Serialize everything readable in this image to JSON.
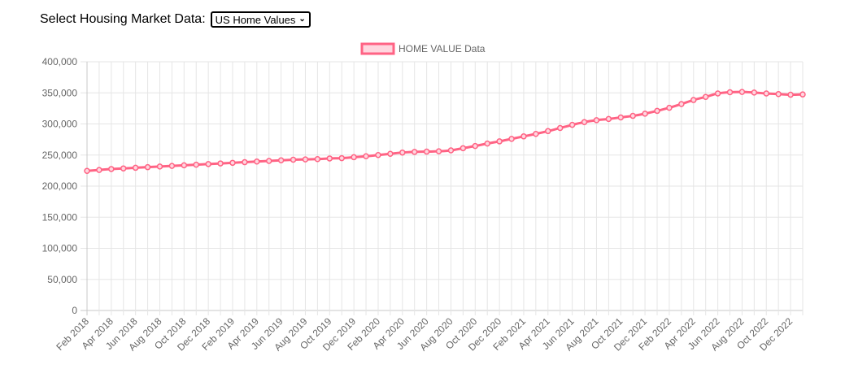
{
  "controls": {
    "label": "Select Housing Market Data:",
    "selected": "US Home Values"
  },
  "colors": {
    "line": "#ff6384",
    "fill": "#ffd6df",
    "grid": "#e5e5e5",
    "tick": "#666666"
  },
  "chart_data": {
    "type": "line",
    "legend": "HOME VALUE Data",
    "legend_position": "top",
    "grid": true,
    "ylim": [
      0,
      400000
    ],
    "yticks": [
      0,
      50000,
      100000,
      150000,
      200000,
      250000,
      300000,
      350000,
      400000
    ],
    "ytick_labels": [
      "0",
      "50,000",
      "100,000",
      "150,000",
      "200,000",
      "250,000",
      "300,000",
      "350,000",
      "400,000"
    ],
    "categories": [
      "Feb 2018",
      "Mar 2018",
      "Apr 2018",
      "May 2018",
      "Jun 2018",
      "Jul 2018",
      "Aug 2018",
      "Sep 2018",
      "Oct 2018",
      "Nov 2018",
      "Dec 2018",
      "Jan 2019",
      "Feb 2019",
      "Mar 2019",
      "Apr 2019",
      "May 2019",
      "Jun 2019",
      "Jul 2019",
      "Aug 2019",
      "Sep 2019",
      "Oct 2019",
      "Nov 2019",
      "Dec 2019",
      "Jan 2020",
      "Feb 2020",
      "Mar 2020",
      "Apr 2020",
      "May 2020",
      "Jun 2020",
      "Jul 2020",
      "Aug 2020",
      "Sep 2020",
      "Oct 2020",
      "Nov 2020",
      "Dec 2020",
      "Jan 2021",
      "Feb 2021",
      "Mar 2021",
      "Apr 2021",
      "May 2021",
      "Jun 2021",
      "Jul 2021",
      "Aug 2021",
      "Sep 2021",
      "Oct 2021",
      "Nov 2021",
      "Dec 2021",
      "Jan 2022",
      "Feb 2022",
      "Mar 2022",
      "Apr 2022",
      "May 2022",
      "Jun 2022",
      "Jul 2022",
      "Aug 2022",
      "Sep 2022",
      "Oct 2022",
      "Nov 2022",
      "Dec 2022",
      "Jan 2023"
    ],
    "tick_labels": [
      "Feb 2018",
      "Apr 2018",
      "Jun 2018",
      "Aug 2018",
      "Oct 2018",
      "Dec 2018",
      "Feb 2019",
      "Apr 2019",
      "Jun 2019",
      "Aug 2019",
      "Oct 2019",
      "Dec 2019",
      "Feb 2020",
      "Apr 2020",
      "Jun 2020",
      "Aug 2020",
      "Oct 2020",
      "Dec 2020",
      "Feb 2021",
      "Apr 2021",
      "Jun 2021",
      "Aug 2021",
      "Oct 2021",
      "Dec 2021",
      "Feb 2022",
      "Apr 2022",
      "Jun 2022",
      "Aug 2022",
      "Oct 2022",
      "Dec 2022"
    ],
    "values": [
      224500,
      226000,
      227500,
      228500,
      229500,
      230500,
      231500,
      232500,
      233500,
      234500,
      235500,
      236500,
      237500,
      238500,
      239500,
      240500,
      241500,
      242500,
      243000,
      243500,
      244500,
      245000,
      246500,
      248000,
      250000,
      252000,
      254000,
      255000,
      255500,
      256000,
      257500,
      261000,
      264500,
      268500,
      272000,
      276000,
      280000,
      284000,
      288500,
      293500,
      298500,
      303000,
      306000,
      308000,
      310500,
      313000,
      316500,
      321000,
      326000,
      332000,
      338500,
      343500,
      349000,
      351000,
      351500,
      350500,
      349000,
      348000,
      347000,
      347500
    ]
  }
}
